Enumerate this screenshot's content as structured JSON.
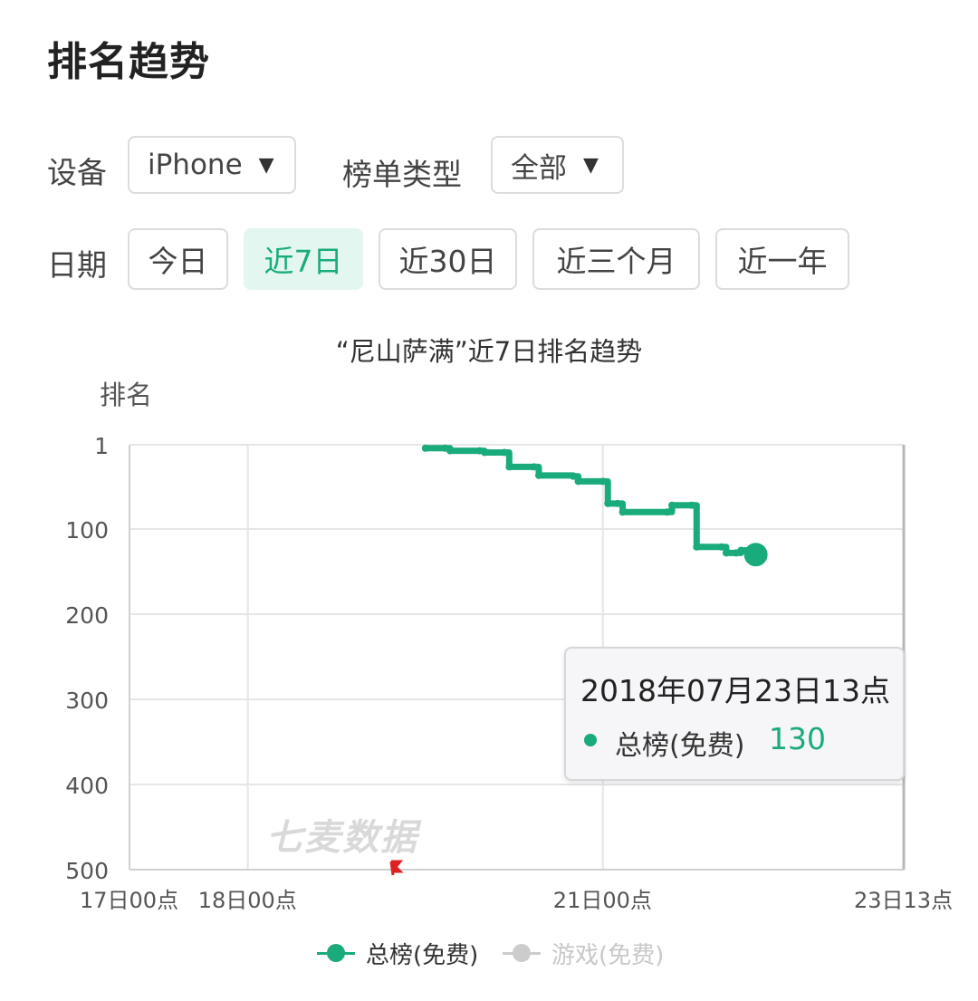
{
  "page": {
    "title": "排名趋势"
  },
  "filters": {
    "device_label": "设备",
    "device_value": "iPhone",
    "chart_type_label": "榜单类型",
    "chart_type_value": "全部",
    "date_label": "日期",
    "caret": "▼"
  },
  "date_tabs": [
    {
      "label": "今日",
      "active": false
    },
    {
      "label": "近7日",
      "active": true
    },
    {
      "label": "近30日",
      "active": false
    },
    {
      "label": "近三个月",
      "active": false
    },
    {
      "label": "近一年",
      "active": false
    }
  ],
  "colors": {
    "accent": "#1aab7d",
    "inactive_series": "#cccccc",
    "grid": "#e6e6e6"
  },
  "tooltip": {
    "time": "2018年07月23日13点",
    "series": "总榜(免费)",
    "value": "130"
  },
  "watermark": "七麦数据",
  "chart_data": {
    "type": "line",
    "title": "“尼山萨满”近7日排名趋势",
    "ylabel": "排名",
    "y_reversed": true,
    "ylim": [
      1,
      500
    ],
    "y_ticks": [
      1,
      100,
      200,
      300,
      400,
      500
    ],
    "x_ticks": [
      "17日00点",
      "18日00点",
      "21日00点",
      "23日13点"
    ],
    "x_tick_hours": [
      0,
      24,
      96,
      157
    ],
    "x_range_hours": [
      0,
      157
    ],
    "grid": true,
    "legend_position": "bottom",
    "series": [
      {
        "name": "总榜(免费)",
        "visible": true,
        "points": [
          [
            60,
            5
          ],
          [
            64,
            5
          ],
          [
            65,
            8
          ],
          [
            71,
            8
          ],
          [
            72,
            10
          ],
          [
            76,
            10
          ],
          [
            77,
            27
          ],
          [
            82,
            27
          ],
          [
            83,
            37
          ],
          [
            90,
            38
          ],
          [
            91,
            44
          ],
          [
            96,
            44
          ],
          [
            97,
            70
          ],
          [
            99,
            70
          ],
          [
            100,
            80
          ],
          [
            109,
            80
          ],
          [
            110,
            72
          ],
          [
            114,
            72
          ],
          [
            115,
            121
          ],
          [
            120,
            121
          ],
          [
            121,
            128
          ],
          [
            123,
            128
          ],
          [
            124,
            125
          ],
          [
            126,
            126
          ],
          [
            127,
            130
          ]
        ]
      },
      {
        "name": "游戏(免费)",
        "visible": false,
        "points": []
      }
    ]
  }
}
